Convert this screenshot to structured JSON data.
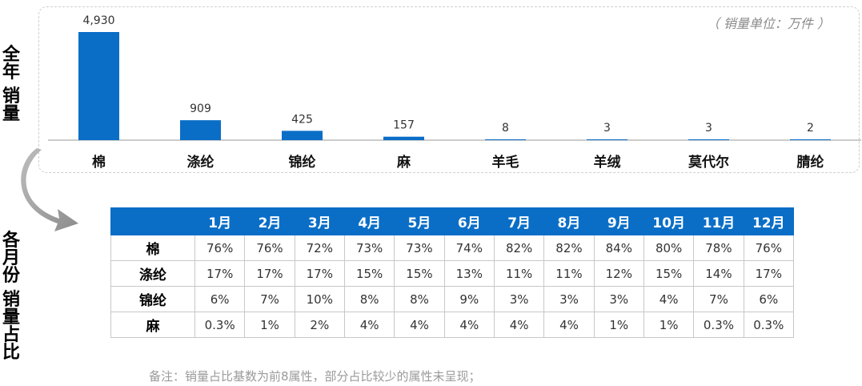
{
  "chart_data": {
    "type": "bar",
    "categories": [
      "棉",
      "涤纶",
      "锦纶",
      "麻",
      "羊毛",
      "羊绒",
      "莫代尔",
      "腈纶"
    ],
    "values": [
      4930,
      909,
      425,
      157,
      8,
      3,
      3,
      2
    ],
    "value_labels": [
      "4,930",
      "909",
      "425",
      "157",
      "8",
      "3",
      "3",
      "2"
    ],
    "unit_note": "（ 销量单位：万件 ）",
    "bar_color": "#0a6ec7",
    "ylim": [
      0,
      4930
    ]
  },
  "side_labels": {
    "annual": [
      "全",
      "年",
      "销",
      "量"
    ],
    "monthly": [
      "各",
      "月",
      "份",
      "销",
      "量",
      "占",
      "比"
    ]
  },
  "share_table": {
    "header_color": "#0a6ec7",
    "columns": [
      "1月",
      "2月",
      "3月",
      "4月",
      "5月",
      "6月",
      "7月",
      "8月",
      "9月",
      "10月",
      "11月",
      "12月"
    ],
    "rows": [
      {
        "label": "棉",
        "values": [
          "76%",
          "76%",
          "72%",
          "73%",
          "73%",
          "74%",
          "82%",
          "82%",
          "84%",
          "80%",
          "78%",
          "76%"
        ]
      },
      {
        "label": "涤纶",
        "values": [
          "17%",
          "17%",
          "17%",
          "15%",
          "15%",
          "13%",
          "11%",
          "11%",
          "12%",
          "15%",
          "14%",
          "17%"
        ]
      },
      {
        "label": "锦纶",
        "values": [
          "6%",
          "7%",
          "10%",
          "8%",
          "8%",
          "9%",
          "3%",
          "3%",
          "3%",
          "4%",
          "7%",
          "6%"
        ]
      },
      {
        "label": "麻",
        "values": [
          "0.3%",
          "1%",
          "2%",
          "4%",
          "4%",
          "4%",
          "4%",
          "4%",
          "1%",
          "1%",
          "0.3%",
          "0.3%"
        ]
      }
    ]
  },
  "footnote": "备注：销量占比基数为前8属性，部分占比较少的属性未呈现；",
  "icons": {
    "flow_arrow": "curved-arrow-icon"
  }
}
